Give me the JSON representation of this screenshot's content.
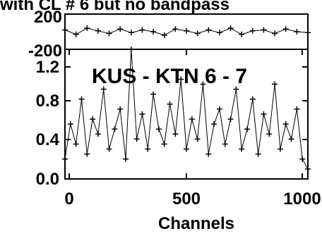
{
  "chart_data": [
    {
      "type": "scatter",
      "panel": "phase",
      "title": "with CL # 6 but no bandpass",
      "yticks": [
        "200",
        "-200"
      ],
      "ylim": [
        -200,
        200
      ],
      "xlim": [
        0,
        1100
      ],
      "series": [
        {
          "marker": "+",
          "connected": true,
          "x": [
            0,
            50,
            100,
            150,
            200,
            250,
            300,
            350,
            400,
            450,
            500,
            550,
            600,
            650,
            700,
            750,
            800,
            850,
            900,
            950,
            1000,
            1050,
            1100
          ],
          "y": [
            20,
            -30,
            40,
            10,
            -20,
            30,
            -10,
            20,
            0,
            -40,
            30,
            10,
            -20,
            20,
            -10,
            40,
            -30,
            10,
            20,
            -20,
            30,
            0,
            -10
          ]
        }
      ]
    },
    {
      "type": "scatter",
      "panel": "amplitude",
      "annotation": "KUS - KTN   6 - 7",
      "xlabel": "Channels",
      "xticks": [
        "0",
        "500",
        "1000"
      ],
      "yticks": [
        "0.0",
        "0.4",
        "0.8",
        "1.2"
      ],
      "xlim": [
        0,
        1100
      ],
      "ylim": [
        0,
        1.3
      ],
      "series": [
        {
          "marker": "+",
          "connected": true,
          "x": [
            0,
            25,
            50,
            75,
            100,
            125,
            150,
            175,
            200,
            225,
            250,
            275,
            300,
            325,
            350,
            375,
            400,
            425,
            450,
            475,
            500,
            525,
            550,
            575,
            600,
            625,
            650,
            675,
            700,
            725,
            750,
            775,
            800,
            825,
            850,
            875,
            900,
            925,
            950,
            975,
            1000,
            1025,
            1050,
            1075,
            1100
          ],
          "y": [
            0.2,
            0.55,
            0.35,
            0.8,
            0.25,
            0.6,
            0.45,
            0.9,
            0.3,
            0.5,
            0.7,
            0.2,
            1.3,
            0.4,
            0.65,
            0.3,
            0.85,
            0.5,
            0.35,
            0.75,
            0.45,
            1.0,
            0.3,
            0.6,
            0.4,
            0.95,
            0.25,
            0.55,
            0.7,
            0.35,
            0.6,
            0.9,
            0.3,
            0.5,
            0.8,
            0.25,
            0.65,
            0.45,
            0.95,
            0.3,
            0.55,
            0.4,
            0.7,
            0.2,
            0.1
          ]
        }
      ]
    }
  ]
}
